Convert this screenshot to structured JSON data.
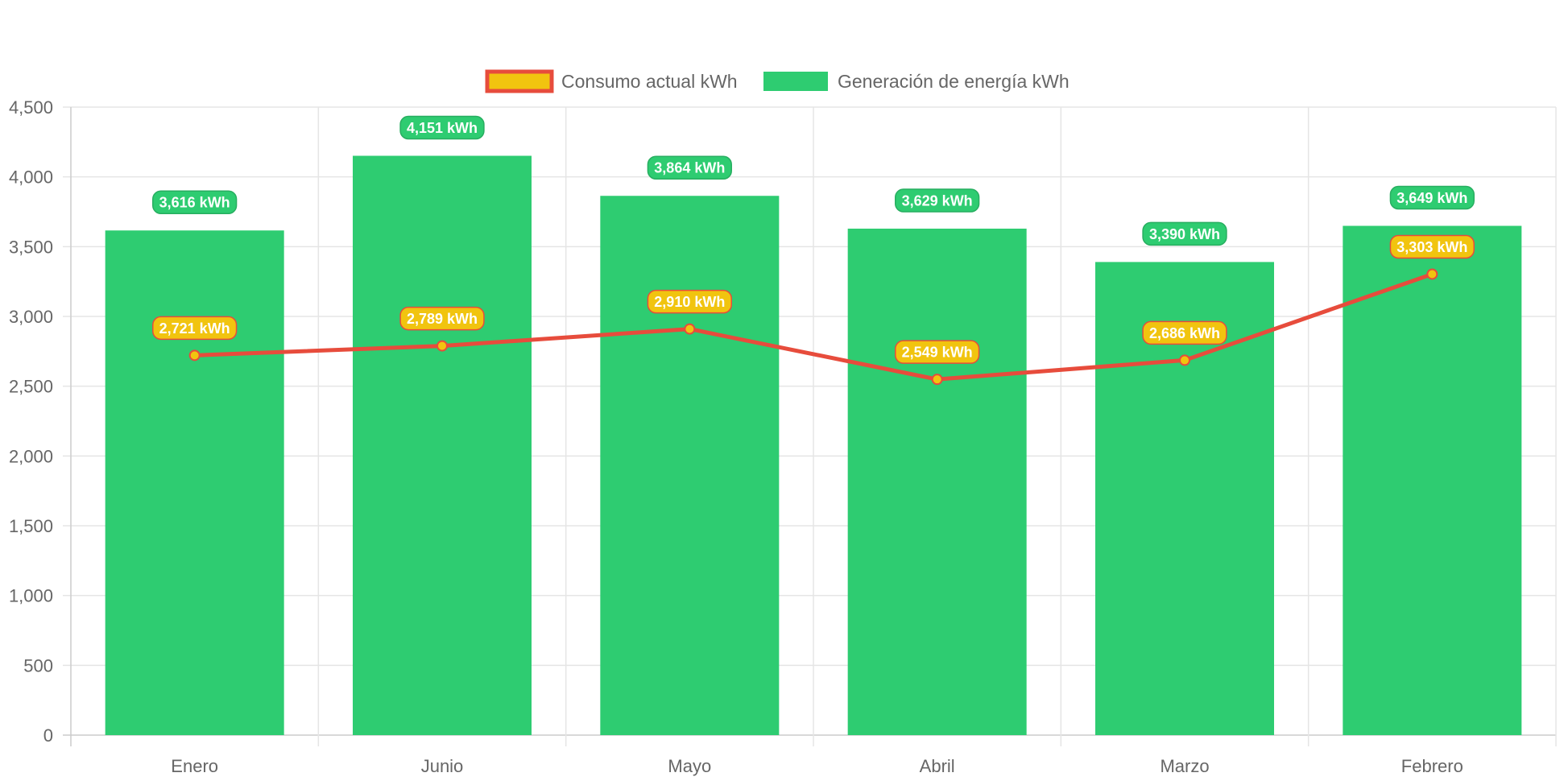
{
  "chart_data": {
    "type": "bar",
    "categories": [
      "Enero",
      "Junio",
      "Mayo",
      "Abril",
      "Marzo",
      "Febrero"
    ],
    "series": [
      {
        "name": "Consumo actual kWh",
        "type": "line",
        "values": [
          2721,
          2789,
          2910,
          2549,
          2686,
          3303
        ],
        "labels": [
          "2,721 kWh",
          "2,789 kWh",
          "2,910 kWh",
          "2,549 kWh",
          "2,686 kWh",
          "3,303 kWh"
        ],
        "color": "#e74c3c",
        "fill_color": "#f1c40f"
      },
      {
        "name": "Generación de energía kWh",
        "type": "bar",
        "values": [
          3616,
          4151,
          3864,
          3629,
          3390,
          3649
        ],
        "labels": [
          "3,616 kWh",
          "4,151 kWh",
          "3,864 kWh",
          "3,629 kWh",
          "3,390 kWh",
          "3,649 kWh"
        ],
        "color": "#2ecc71",
        "border_color": "#27ae60"
      }
    ],
    "yticks": [
      "0",
      "500",
      "1,000",
      "1,500",
      "2,000",
      "2,500",
      "3,000",
      "3,500",
      "4,000",
      "4,500"
    ],
    "ylim": [
      0,
      4500
    ],
    "grid": true,
    "legend_position": "top-center"
  }
}
